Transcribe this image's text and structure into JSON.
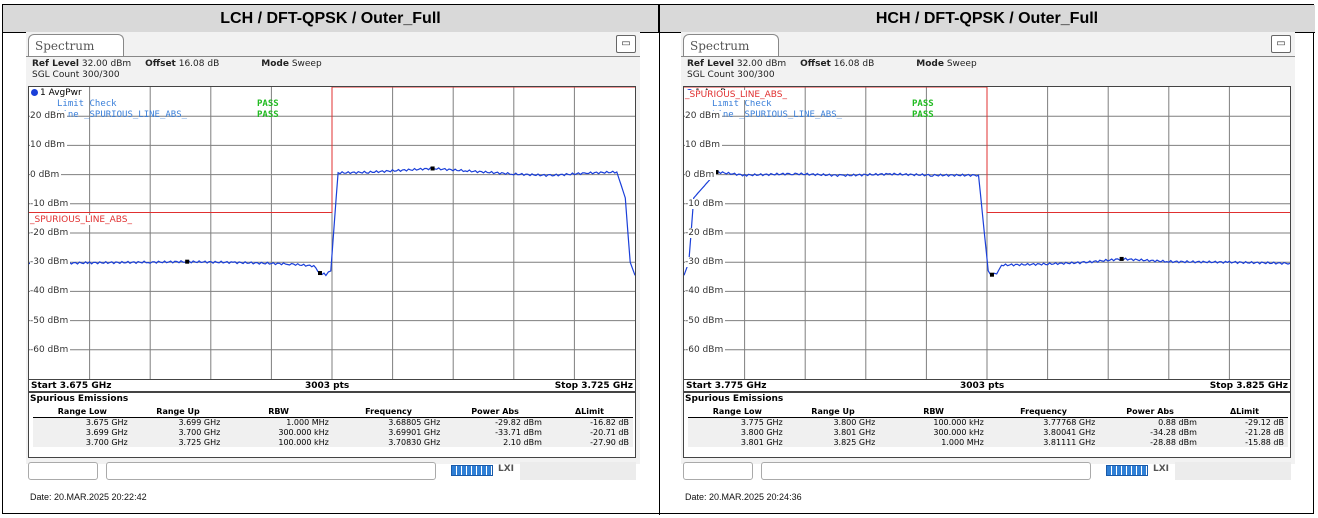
{
  "panels": [
    {
      "header": "LCH / DFT-QPSK / Outer_Full",
      "tab": "Spectrum",
      "ref_level_label": "Ref Level",
      "ref_level": "32.00 dBm",
      "offset_label": "Offset",
      "offset": "16.08 dB",
      "mode_label": "Mode",
      "mode": "Sweep",
      "sgl_count": "SGL Count 300/300",
      "trace": "1 AvgPwr",
      "limit_check_label": "Limit Check",
      "limit_check_value": "PASS",
      "line_label": "Line _SPURIOUS_LINE_ABS_",
      "line_value": "PASS",
      "limit_line_label": "_SPURIOUS_LINE_ABS_",
      "y_ticks": [
        "20 dBm",
        "10 dBm",
        "0 dBm",
        "-10 dBm",
        "-20 dBm",
        "-30 dBm",
        "-40 dBm",
        "-50 dBm",
        "-60 dBm"
      ],
      "start": "Start 3.675 GHz",
      "pts": "3003 pts",
      "stop": "Stop 3.725 GHz",
      "se_title": "Spurious Emissions",
      "se_columns": [
        "Range Low",
        "Range Up",
        "RBW",
        "Frequency",
        "Power Abs",
        "ΔLimit"
      ],
      "se_rows": [
        [
          "3.675 GHz",
          "3.699 GHz",
          "1.000 MHz",
          "3.68805 GHz",
          "-29.82 dBm",
          "-16.82 dB"
        ],
        [
          "3.699 GHz",
          "3.700 GHz",
          "300.000 kHz",
          "3.69901 GHz",
          "-33.71 dBm",
          "-20.71 dB"
        ],
        [
          "3.700 GHz",
          "3.725 GHz",
          "100.000 kHz",
          "3.70830 GHz",
          "2.10 dBm",
          "-27.90 dB"
        ]
      ],
      "lxi": "LXI",
      "date": "Date: 20.MAR.2025  20:22:42",
      "chart_data": {
        "type": "line",
        "x_range_ghz": [
          3.675,
          3.725
        ],
        "ylim": [
          -70,
          30
        ],
        "limit_line_dbm": [
          {
            "x_start": 3.675,
            "x_end": 3.7,
            "y": -13
          },
          {
            "x_start": 3.7,
            "x_end": 3.725,
            "y": 30
          }
        ],
        "trace_points": [
          [
            3.675,
            -30.5
          ],
          [
            3.68,
            -30.2
          ],
          [
            3.685,
            -30.0
          ],
          [
            3.68805,
            -29.82
          ],
          [
            3.692,
            -30.1
          ],
          [
            3.6965,
            -30.6
          ],
          [
            3.6985,
            -31.3
          ],
          [
            3.69901,
            -33.71
          ],
          [
            3.6995,
            -34.2
          ],
          [
            3.6999,
            -33.0
          ],
          [
            3.7005,
            0.6
          ],
          [
            3.703,
            0.8
          ],
          [
            3.7083,
            2.1
          ],
          [
            3.711,
            1.3
          ],
          [
            3.715,
            0.2
          ],
          [
            3.718,
            -0.3
          ],
          [
            3.721,
            0.5
          ],
          [
            3.7235,
            0.9
          ],
          [
            3.7242,
            -8.0
          ],
          [
            3.7246,
            -30.0
          ],
          [
            3.725,
            -34.5
          ]
        ],
        "markers": [
          [
            3.68805,
            -29.82
          ],
          [
            3.69901,
            -33.71
          ],
          [
            3.7083,
            2.1
          ]
        ]
      }
    },
    {
      "header": "HCH / DFT-QPSK / Outer_Full",
      "tab": "Spectrum",
      "ref_level_label": "Ref Level",
      "ref_level": "32.00 dBm",
      "offset_label": "Offset",
      "offset": "16.08 dB",
      "mode_label": "Mode",
      "mode": "Sweep",
      "sgl_count": "SGL Count 300/300",
      "trace": "1 AvgPwr",
      "limit_check_label": "Limit Check",
      "limit_check_value": "PASS",
      "line_label": "Line _SPURIOUS_LINE_ABS_",
      "line_value": "PASS",
      "limit_line_label": "_SPURIOUS_LINE_ABS_",
      "y_ticks": [
        "20 dBm",
        "10 dBm",
        "0 dBm",
        "-10 dBm",
        "-20 dBm",
        "-30 dBm",
        "-40 dBm",
        "-50 dBm",
        "-60 dBm"
      ],
      "start": "Start 3.775 GHz",
      "pts": "3003 pts",
      "stop": "Stop 3.825 GHz",
      "se_title": "Spurious Emissions",
      "se_columns": [
        "Range Low",
        "Range Up",
        "RBW",
        "Frequency",
        "Power Abs",
        "ΔLimit"
      ],
      "se_rows": [
        [
          "3.775 GHz",
          "3.800 GHz",
          "100.000 kHz",
          "3.77768 GHz",
          "0.88 dBm",
          "-29.12 dB"
        ],
        [
          "3.800 GHz",
          "3.801 GHz",
          "300.000 kHz",
          "3.80041 GHz",
          "-34.28 dBm",
          "-21.28 dB"
        ],
        [
          "3.801 GHz",
          "3.825 GHz",
          "1.000 MHz",
          "3.81111 GHz",
          "-28.88 dBm",
          "-15.88 dB"
        ]
      ],
      "lxi": "LXI",
      "date": "Date: 20.MAR.2025  20:24:36",
      "chart_data": {
        "type": "line",
        "x_range_ghz": [
          3.775,
          3.825
        ],
        "ylim": [
          -70,
          30
        ],
        "limit_line_dbm": [
          {
            "x_start": 3.775,
            "x_end": 3.8,
            "y": 30
          },
          {
            "x_start": 3.8,
            "x_end": 3.825,
            "y": -13
          }
        ],
        "trace_points": [
          [
            3.775,
            -34.5
          ],
          [
            3.7754,
            -30.0
          ],
          [
            3.7758,
            -8.0
          ],
          [
            3.77768,
            0.88
          ],
          [
            3.78,
            -0.2
          ],
          [
            3.784,
            0.3
          ],
          [
            3.788,
            -0.3
          ],
          [
            3.792,
            0.2
          ],
          [
            3.7955,
            -0.2
          ],
          [
            3.7993,
            -0.2
          ],
          [
            3.8001,
            -33.0
          ],
          [
            3.8004,
            -34.28
          ],
          [
            3.8008,
            -34.0
          ],
          [
            3.8012,
            -31.0
          ],
          [
            3.805,
            -30.6
          ],
          [
            3.808,
            -30.1
          ],
          [
            3.81111,
            -28.88
          ],
          [
            3.815,
            -29.8
          ],
          [
            3.82,
            -30.0
          ],
          [
            3.825,
            -30.4
          ]
        ],
        "markers": [
          [
            3.77768,
            0.88
          ],
          [
            3.80041,
            -34.28
          ],
          [
            3.81111,
            -28.88
          ]
        ]
      }
    }
  ],
  "colors": {
    "trace": "#1a3fd9",
    "limit_line": "#e03030",
    "grid": "#7f7f7f",
    "pass": "#22bb22",
    "limit_text": "#3a7fd9"
  }
}
